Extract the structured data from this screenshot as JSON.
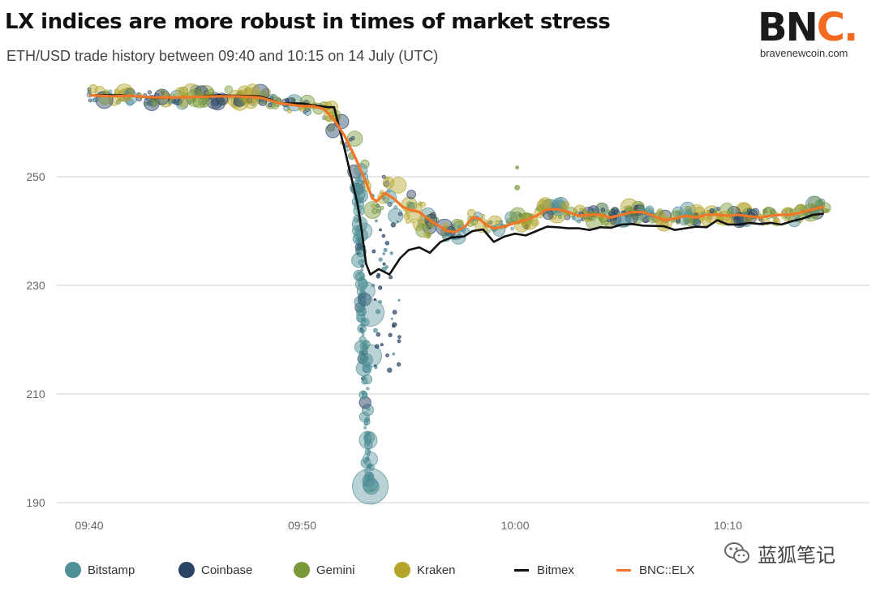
{
  "header": {
    "title": "LX indices are more robust in times of market stress",
    "subtitle": "ETH/USD trade history between 09:40 and 10:15 on 14 July (UTC)"
  },
  "logo": {
    "mark_prefix": "BN",
    "mark_accent": "C.",
    "url": "bravenewcoin.com"
  },
  "watermark": {
    "text": "蓝狐笔记"
  },
  "colors": {
    "Bitstamp": "#4f8f96",
    "Coinbase": "#2b4466",
    "Gemini": "#7a9a3a",
    "Kraken": "#b5a52a",
    "Bitmex": "#111111",
    "BNC::ELX": "#f07628",
    "grid": "#d0d0d0"
  },
  "legend": [
    {
      "name": "Bitstamp",
      "kind": "dot"
    },
    {
      "name": "Coinbase",
      "kind": "dot"
    },
    {
      "name": "Gemini",
      "kind": "dot"
    },
    {
      "name": "Kraken",
      "kind": "dot"
    },
    {
      "name": "Bitmex",
      "kind": "line"
    },
    {
      "name": "BNC::ELX",
      "kind": "line"
    }
  ],
  "chart_data": {
    "type": "scatter",
    "xlabel": "",
    "ylabel": "",
    "xlim_minutes": [
      0,
      35
    ],
    "ylim": [
      190,
      266
    ],
    "yticks": [
      190,
      210,
      230,
      250
    ],
    "xticks": [
      {
        "minute": 0,
        "label": "09:40"
      },
      {
        "minute": 10,
        "label": "09:50"
      },
      {
        "minute": 20,
        "label": "10:00"
      },
      {
        "minute": 30,
        "label": "10:10"
      }
    ],
    "grid": true,
    "legend_position": "bottom",
    "series": [
      {
        "name": "Bitmex",
        "type": "line",
        "points": [
          [
            0,
            265
          ],
          [
            1.5,
            265
          ],
          [
            2.5,
            264.7
          ],
          [
            3,
            264.5
          ],
          [
            5,
            264.7
          ],
          [
            6,
            265
          ],
          [
            8,
            264.8
          ],
          [
            8.5,
            264.2
          ],
          [
            9,
            263.5
          ],
          [
            10,
            263.5
          ],
          [
            10.5,
            263.2
          ],
          [
            11.2,
            262.8
          ],
          [
            11.5,
            262.8
          ],
          [
            12,
            255
          ],
          [
            12.3,
            250
          ],
          [
            12.6,
            245
          ],
          [
            12.8,
            240
          ],
          [
            13,
            234
          ],
          [
            13.2,
            232
          ],
          [
            13.6,
            233
          ],
          [
            14.1,
            232
          ],
          [
            14.6,
            235
          ],
          [
            15,
            236.5
          ],
          [
            15.5,
            237
          ],
          [
            16,
            236
          ],
          [
            16.5,
            238
          ],
          [
            17,
            238.8
          ],
          [
            17.6,
            239
          ],
          [
            18,
            240
          ],
          [
            18.5,
            240.3
          ],
          [
            19,
            238
          ],
          [
            19.5,
            239
          ],
          [
            20,
            239.5
          ],
          [
            20.5,
            239.2
          ],
          [
            21,
            240
          ],
          [
            21.5,
            240.8
          ],
          [
            22,
            240.7
          ],
          [
            22.5,
            240.5
          ],
          [
            23,
            240.5
          ],
          [
            23.5,
            240.2
          ],
          [
            24,
            240.7
          ],
          [
            24.5,
            240.6
          ],
          [
            25,
            241.2
          ],
          [
            25.5,
            241.3
          ],
          [
            26,
            241
          ],
          [
            27,
            240.9
          ],
          [
            27.5,
            240.2
          ],
          [
            28,
            240.5
          ],
          [
            28.5,
            240.8
          ],
          [
            29,
            240.7
          ],
          [
            29.5,
            242
          ],
          [
            30,
            241.2
          ],
          [
            30.5,
            241.2
          ],
          [
            31,
            241.5
          ],
          [
            31.5,
            241.3
          ],
          [
            32,
            241.5
          ],
          [
            32.5,
            241.2
          ],
          [
            33,
            241.8
          ],
          [
            33.5,
            242.3
          ],
          [
            34,
            243
          ],
          [
            34.5,
            243.2
          ]
        ]
      },
      {
        "name": "BNC::ELX",
        "type": "line",
        "points": [
          [
            0,
            265
          ],
          [
            1,
            264.8
          ],
          [
            2,
            264.9
          ],
          [
            3,
            264.6
          ],
          [
            4,
            264.6
          ],
          [
            5,
            264.7
          ],
          [
            6,
            264.8
          ],
          [
            7,
            264.8
          ],
          [
            8,
            264.6
          ],
          [
            9,
            263.5
          ],
          [
            10,
            263
          ],
          [
            10.5,
            263
          ],
          [
            11,
            262.5
          ],
          [
            11.5,
            260.5
          ],
          [
            12,
            257.5
          ],
          [
            12.5,
            253.5
          ],
          [
            13,
            249
          ],
          [
            13.3,
            246
          ],
          [
            13.5,
            245.5
          ],
          [
            13.9,
            247
          ],
          [
            14.3,
            246
          ],
          [
            14.7,
            244.5
          ],
          [
            15,
            244
          ],
          [
            15.5,
            243.5
          ],
          [
            16,
            242
          ],
          [
            16.4,
            241
          ],
          [
            16.8,
            240
          ],
          [
            17.2,
            239.8
          ],
          [
            17.7,
            241
          ],
          [
            18,
            242.5
          ],
          [
            18.3,
            242.3
          ],
          [
            18.7,
            241
          ],
          [
            19,
            240.5
          ],
          [
            19.5,
            240.8
          ],
          [
            20,
            241.5
          ],
          [
            20.5,
            242
          ],
          [
            21,
            242.8
          ],
          [
            21.5,
            244
          ],
          [
            22,
            244
          ],
          [
            22.5,
            243.5
          ],
          [
            23,
            242.8
          ],
          [
            23.5,
            243
          ],
          [
            24,
            243
          ],
          [
            24.5,
            242.5
          ],
          [
            25,
            243
          ],
          [
            25.5,
            243.5
          ],
          [
            26,
            243.5
          ],
          [
            26.5,
            242.8
          ],
          [
            27,
            242
          ],
          [
            27.5,
            242.3
          ],
          [
            28,
            242.8
          ],
          [
            28.5,
            242.5
          ],
          [
            29,
            243
          ],
          [
            29.5,
            243
          ],
          [
            30,
            242.8
          ],
          [
            30.5,
            243
          ],
          [
            31,
            242.7
          ],
          [
            31.5,
            242.5
          ],
          [
            32,
            242.8
          ],
          [
            32.5,
            243
          ],
          [
            33,
            243
          ],
          [
            33.5,
            243.5
          ],
          [
            34,
            244
          ],
          [
            34.5,
            244.5
          ]
        ]
      }
    ]
  }
}
